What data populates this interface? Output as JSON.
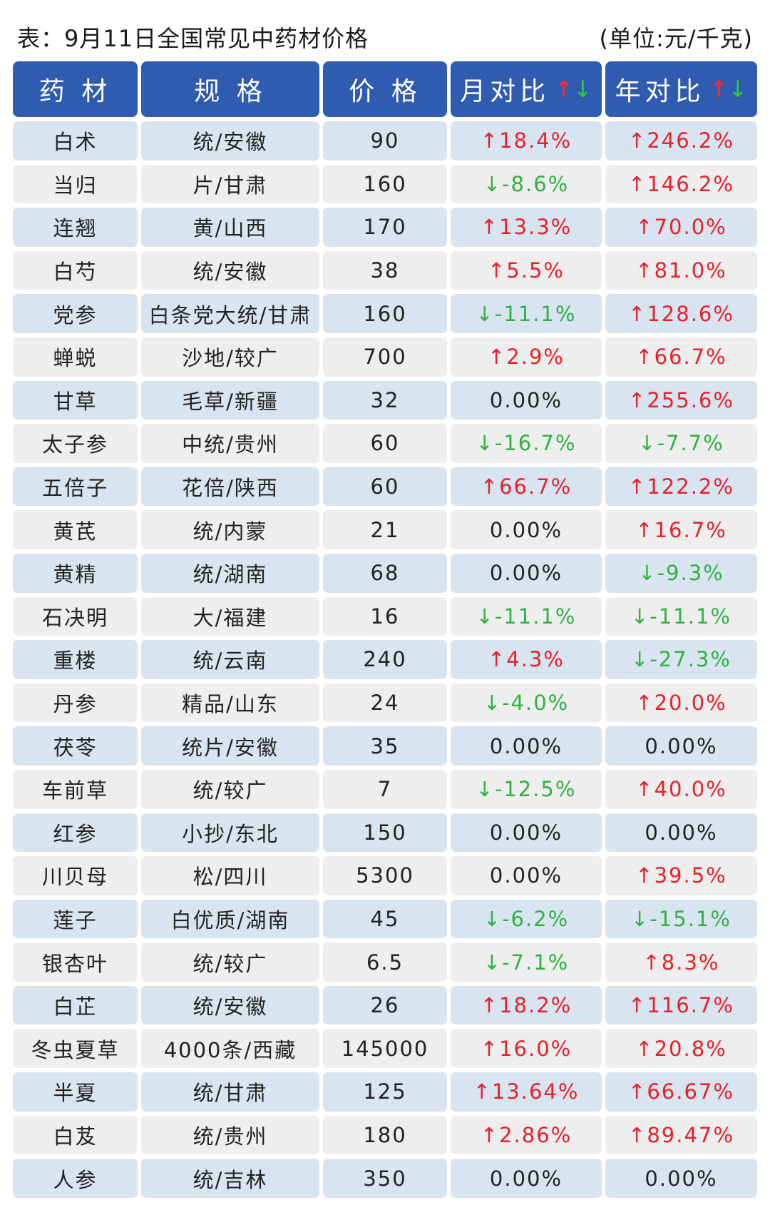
{
  "caption": {
    "title": "表：9月11日全国常见中药材价格",
    "unit": "(单位:元/千克)"
  },
  "headers": {
    "name": "药 材",
    "spec": "规 格",
    "price": "价 格",
    "month": "月对比",
    "year": "年对比",
    "up_arrow": "↑",
    "down_arrow": "↓"
  },
  "colors": {
    "header_bg": "#2f5bb0",
    "row_blue": "#d9e4f1",
    "row_gray": "#eeeeee",
    "up": "#e8202a",
    "down": "#2fb240"
  },
  "rows": [
    {
      "name": "白术",
      "spec": "统/安徽",
      "price": "90",
      "month": "↑18.4%",
      "year": "↑246.2%"
    },
    {
      "name": "当归",
      "spec": "片/甘肃",
      "price": "160",
      "month": "↓-8.6%",
      "year": "↑146.2%"
    },
    {
      "name": "连翘",
      "spec": "黄/山西",
      "price": "170",
      "month": "↑13.3%",
      "year": "↑70.0%"
    },
    {
      "name": "白芍",
      "spec": "统/安徽",
      "price": "38",
      "month": "↑5.5%",
      "year": "↑81.0%"
    },
    {
      "name": "党参",
      "spec": "白条党大统/甘肃",
      "price": "160",
      "month": "↓-11.1%",
      "year": "↑128.6%"
    },
    {
      "name": "蝉蜕",
      "spec": "沙地/较广",
      "price": "700",
      "month": "↑2.9%",
      "year": "↑66.7%"
    },
    {
      "name": "甘草",
      "spec": "毛草/新疆",
      "price": "32",
      "month": "0.00%",
      "year": "↑255.6%"
    },
    {
      "name": "太子参",
      "spec": "中统/贵州",
      "price": "60",
      "month": "↓-16.7%",
      "year": "↓-7.7%"
    },
    {
      "name": "五倍子",
      "spec": "花倍/陕西",
      "price": "60",
      "month": "↑66.7%",
      "year": "↑122.2%"
    },
    {
      "name": "黄芪",
      "spec": "统/内蒙",
      "price": "21",
      "month": "0.00%",
      "year": "↑16.7%"
    },
    {
      "name": "黄精",
      "spec": "统/湖南",
      "price": "68",
      "month": "0.00%",
      "year": "↓-9.3%"
    },
    {
      "name": "石决明",
      "spec": "大/福建",
      "price": "16",
      "month": "↓-11.1%",
      "year": "↓-11.1%"
    },
    {
      "name": "重楼",
      "spec": "统/云南",
      "price": "240",
      "month": "↑4.3%",
      "year": "↓-27.3%"
    },
    {
      "name": "丹参",
      "spec": "精品/山东",
      "price": "24",
      "month": "↓-4.0%",
      "year": "↑20.0%"
    },
    {
      "name": "茯苓",
      "spec": "统片/安徽",
      "price": "35",
      "month": "0.00%",
      "year": "0.00%"
    },
    {
      "name": "车前草",
      "spec": "统/较广",
      "price": "7",
      "month": "↓-12.5%",
      "year": "↑40.0%"
    },
    {
      "name": "红参",
      "spec": "小抄/东北",
      "price": "150",
      "month": "0.00%",
      "year": "0.00%"
    },
    {
      "name": "川贝母",
      "spec": "松/四川",
      "price": "5300",
      "month": "0.00%",
      "year": "↑39.5%"
    },
    {
      "name": "莲子",
      "spec": "白优质/湖南",
      "price": "45",
      "month": "↓-6.2%",
      "year": "↓-15.1%"
    },
    {
      "name": "银杏叶",
      "spec": "统/较广",
      "price": "6.5",
      "month": "↓-7.1%",
      "year": "↑8.3%"
    },
    {
      "name": "白芷",
      "spec": "统/安徽",
      "price": "26",
      "month": "↑18.2%",
      "year": "↑116.7%"
    },
    {
      "name": "冬虫夏草",
      "spec": "4000条/西藏",
      "price": "145000",
      "month": "↑16.0%",
      "year": "↑20.8%"
    },
    {
      "name": "半夏",
      "spec": "统/甘肃",
      "price": "125",
      "month": "↑13.64%",
      "year": "↑66.67%"
    },
    {
      "name": "白芨",
      "spec": "统/贵州",
      "price": "180",
      "month": "↑2.86%",
      "year": "↑89.47%"
    },
    {
      "name": "人参",
      "spec": "统/吉林",
      "price": "350",
      "month": "0.00%",
      "year": "0.00%"
    }
  ]
}
